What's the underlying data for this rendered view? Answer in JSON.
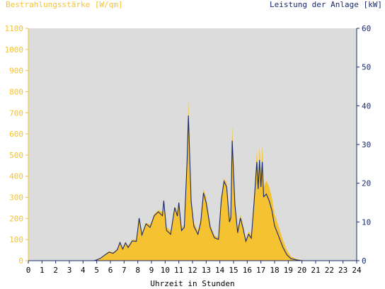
{
  "chart_data": {
    "type": "area",
    "ylabel": "Bestrahlungsstärke [W/qm]",
    "y2label": "Leistung der Anlage [kW]",
    "xlabel": "Uhrzeit in Stunden",
    "xlim": [
      0,
      24
    ],
    "ylim": [
      0,
      1100
    ],
    "y2lim": [
      0,
      60
    ],
    "xticks": [
      0,
      1,
      2,
      3,
      4,
      5,
      6,
      7,
      8,
      9,
      10,
      11,
      12,
      13,
      14,
      15,
      16,
      17,
      18,
      19,
      20,
      21,
      22,
      23,
      24
    ],
    "yticks": [
      0,
      100,
      200,
      300,
      400,
      500,
      600,
      700,
      800,
      900,
      1000,
      1100
    ],
    "y2ticks": [
      0,
      10,
      20,
      30,
      40,
      50,
      60
    ],
    "grid": false,
    "colors": {
      "irradiance": "#f5c231",
      "power": "#1a2a6c",
      "plot_bg": "#dcdcdc"
    },
    "series": [
      {
        "name": "Bestrahlungsstärke [W/qm]",
        "axis": "left",
        "kind": "area",
        "x": [
          0,
          4.8,
          5.0,
          5.3,
          5.6,
          5.9,
          6.2,
          6.5,
          6.7,
          6.9,
          7.1,
          7.3,
          7.6,
          7.9,
          8.1,
          8.3,
          8.6,
          8.9,
          9.2,
          9.5,
          9.8,
          9.9,
          10.1,
          10.4,
          10.7,
          10.9,
          11.0,
          11.2,
          11.4,
          11.6,
          11.7,
          11.9,
          12.1,
          12.4,
          12.6,
          12.8,
          13.0,
          13.3,
          13.6,
          13.9,
          14.1,
          14.3,
          14.5,
          14.7,
          14.8,
          14.9,
          15.1,
          15.3,
          15.5,
          15.7,
          15.9,
          16.1,
          16.3,
          16.5,
          16.7,
          16.8,
          16.9,
          17.0,
          17.1,
          17.2,
          17.4,
          17.6,
          17.8,
          18.0,
          18.3,
          18.6,
          18.9,
          19.2,
          19.6,
          20.0,
          20.4,
          24
        ],
        "values": [
          0,
          0,
          5,
          15,
          30,
          45,
          40,
          55,
          90,
          60,
          90,
          70,
          100,
          100,
          200,
          130,
          180,
          170,
          220,
          240,
          230,
          290,
          160,
          140,
          260,
          230,
          280,
          160,
          170,
          500,
          760,
          300,
          180,
          140,
          200,
          340,
          300,
          170,
          120,
          110,
          300,
          390,
          370,
          200,
          220,
          640,
          300,
          150,
          220,
          170,
          100,
          140,
          120,
          300,
          520,
          380,
          540,
          400,
          545,
          350,
          380,
          350,
          300,
          220,
          160,
          100,
          50,
          20,
          8,
          3,
          0,
          0
        ]
      },
      {
        "name": "Leistung der Anlage [kW]",
        "axis": "right",
        "kind": "line",
        "x": [
          0,
          4.8,
          5.0,
          5.3,
          5.6,
          5.9,
          6.2,
          6.5,
          6.7,
          6.9,
          7.1,
          7.3,
          7.6,
          7.9,
          8.1,
          8.3,
          8.6,
          8.9,
          9.2,
          9.5,
          9.8,
          9.9,
          10.1,
          10.4,
          10.7,
          10.9,
          11.0,
          11.2,
          11.4,
          11.6,
          11.7,
          11.9,
          12.1,
          12.4,
          12.6,
          12.8,
          13.0,
          13.3,
          13.6,
          13.9,
          14.1,
          14.3,
          14.5,
          14.7,
          14.8,
          14.9,
          15.1,
          15.3,
          15.5,
          15.7,
          15.9,
          16.1,
          16.3,
          16.5,
          16.7,
          16.8,
          16.9,
          17.0,
          17.1,
          17.2,
          17.4,
          17.6,
          17.8,
          18.0,
          18.3,
          18.6,
          18.9,
          19.2,
          19.6,
          20.0,
          20.4,
          24
        ],
        "values": [
          0,
          0,
          0.2,
          0.7,
          1.5,
          2.2,
          1.9,
          2.8,
          4.7,
          3.0,
          4.6,
          3.4,
          5.1,
          5.0,
          11.0,
          6.6,
          9.5,
          8.6,
          11.6,
          12.6,
          11.6,
          15.5,
          7.8,
          6.8,
          13.7,
          11.5,
          15.0,
          7.8,
          8.6,
          25.6,
          37.5,
          15.3,
          8.9,
          6.8,
          9.8,
          17.5,
          15.0,
          8.5,
          5.9,
          5.5,
          15.5,
          20.5,
          19.0,
          10.0,
          11.0,
          31.0,
          14.5,
          7.2,
          11.0,
          8.3,
          5.0,
          6.8,
          5.8,
          15.0,
          25.5,
          18.5,
          26.0,
          19.0,
          25.5,
          16.5,
          17.2,
          15.5,
          13.0,
          9.0,
          6.3,
          3.5,
          1.5,
          0.5,
          0.2,
          0,
          0,
          0
        ]
      }
    ]
  }
}
